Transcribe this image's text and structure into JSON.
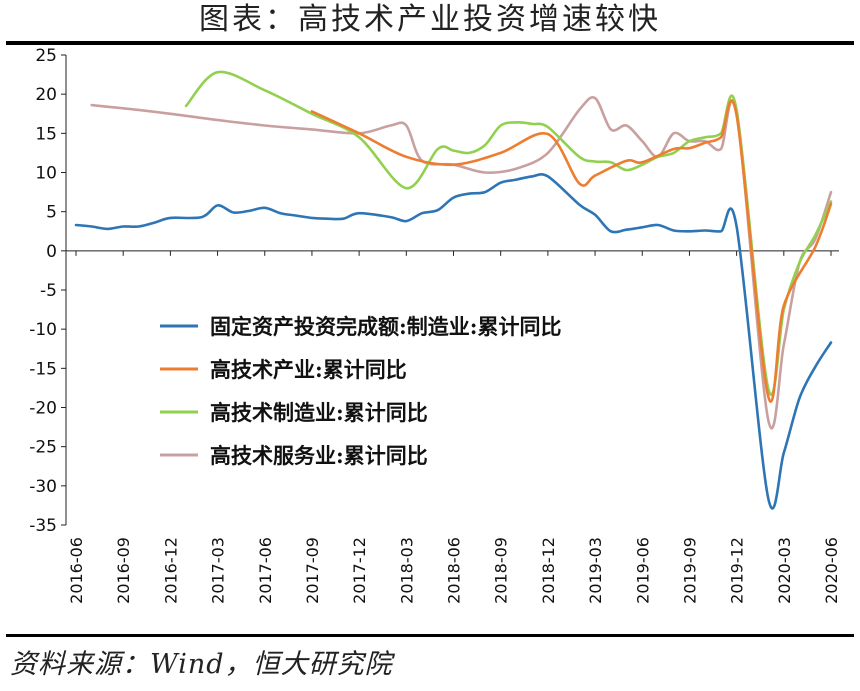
{
  "title": "图表：高技术产业投资增速较快",
  "source": "资料来源：Wind，恒大研究院",
  "chart_data": {
    "type": "line",
    "xlabel": "",
    "ylabel": "",
    "ylim": [
      -35,
      25
    ],
    "yticks": [
      25,
      20,
      15,
      10,
      5,
      0,
      -5,
      -10,
      -15,
      -20,
      -25,
      -30,
      -35
    ],
    "x_tick_labels": [
      "2016-06",
      "2016-09",
      "2016-12",
      "2017-03",
      "2017-06",
      "2017-09",
      "2017-12",
      "2018-03",
      "2018-06",
      "2018-09",
      "2018-12",
      "2019-03",
      "2019-06",
      "2019-09",
      "2019-12",
      "2020-03",
      "2020-06"
    ],
    "legend_position": "center-left",
    "grid": false,
    "series": [
      {
        "name": "固定资产投资完成额:制造业:累计同比",
        "color": "#2E75B6",
        "points": [
          [
            "2016-06",
            3.3
          ],
          [
            "2016-07",
            3.1
          ],
          [
            "2016-08",
            2.8
          ],
          [
            "2016-09",
            3.1
          ],
          [
            "2016-10",
            3.1
          ],
          [
            "2016-11",
            3.6
          ],
          [
            "2016-12",
            4.2
          ],
          [
            "2017-02",
            4.3
          ],
          [
            "2017-03",
            5.8
          ],
          [
            "2017-04",
            4.9
          ],
          [
            "2017-05",
            5.1
          ],
          [
            "2017-06",
            5.5
          ],
          [
            "2017-07",
            4.8
          ],
          [
            "2017-08",
            4.5
          ],
          [
            "2017-09",
            4.2
          ],
          [
            "2017-10",
            4.1
          ],
          [
            "2017-11",
            4.1
          ],
          [
            "2017-12",
            4.8
          ],
          [
            "2018-02",
            4.3
          ],
          [
            "2018-03",
            3.8
          ],
          [
            "2018-04",
            4.8
          ],
          [
            "2018-05",
            5.2
          ],
          [
            "2018-06",
            6.8
          ],
          [
            "2018-07",
            7.3
          ],
          [
            "2018-08",
            7.5
          ],
          [
            "2018-09",
            8.7
          ],
          [
            "2018-10",
            9.1
          ],
          [
            "2018-11",
            9.5
          ],
          [
            "2018-12",
            9.5
          ],
          [
            "2019-02",
            5.9
          ],
          [
            "2019-03",
            4.6
          ],
          [
            "2019-04",
            2.5
          ],
          [
            "2019-05",
            2.7
          ],
          [
            "2019-06",
            3.0
          ],
          [
            "2019-07",
            3.3
          ],
          [
            "2019-08",
            2.6
          ],
          [
            "2019-09",
            2.5
          ],
          [
            "2019-10",
            2.6
          ],
          [
            "2019-11",
            2.5
          ],
          [
            "2019-12",
            3.1
          ],
          [
            "2020-02",
            -31.5
          ],
          [
            "2020-03",
            -25.8
          ],
          [
            "2020-04",
            -18.8
          ],
          [
            "2020-05",
            -14.8
          ],
          [
            "2020-06",
            -11.7
          ]
        ]
      },
      {
        "name": "高技术产业:累计同比",
        "color": "#ED7D31",
        "points": [
          [
            "2017-09",
            17.8
          ],
          [
            "2017-12",
            15.0
          ],
          [
            "2018-03",
            12.0
          ],
          [
            "2018-06",
            11.0
          ],
          [
            "2018-09",
            12.5
          ],
          [
            "2018-12",
            14.9
          ],
          [
            "2019-02",
            8.6
          ],
          [
            "2019-03",
            9.6
          ],
          [
            "2019-05",
            11.5
          ],
          [
            "2019-06",
            11.3
          ],
          [
            "2019-08",
            13.0
          ],
          [
            "2019-09",
            13.1
          ],
          [
            "2019-10",
            13.8
          ],
          [
            "2019-11",
            14.5
          ],
          [
            "2019-12",
            17.3
          ],
          [
            "2020-02",
            -18.5
          ],
          [
            "2020-03",
            -7.0
          ],
          [
            "2020-05",
            0.5
          ],
          [
            "2020-06",
            6.0
          ]
        ]
      },
      {
        "name": "高技术制造业:累计同比",
        "color": "#92D050",
        "points": [
          [
            "2017-01",
            18.5
          ],
          [
            "2017-03",
            22.8
          ],
          [
            "2017-06",
            20.5
          ],
          [
            "2017-09",
            17.5
          ],
          [
            "2017-12",
            14.5
          ],
          [
            "2018-03",
            8.0
          ],
          [
            "2018-05",
            13.0
          ],
          [
            "2018-06",
            12.8
          ],
          [
            "2018-07",
            12.5
          ],
          [
            "2018-08",
            13.5
          ],
          [
            "2018-09",
            16.0
          ],
          [
            "2018-10",
            16.4
          ],
          [
            "2018-11",
            16.2
          ],
          [
            "2018-12",
            15.8
          ],
          [
            "2019-02",
            12.0
          ],
          [
            "2019-03",
            11.4
          ],
          [
            "2019-04",
            11.3
          ],
          [
            "2019-05",
            10.3
          ],
          [
            "2019-06",
            11.0
          ],
          [
            "2019-07",
            12.0
          ],
          [
            "2019-08",
            12.5
          ],
          [
            "2019-09",
            14.0
          ],
          [
            "2019-10",
            14.5
          ],
          [
            "2019-11",
            15.0
          ],
          [
            "2019-12",
            18.0
          ],
          [
            "2020-02",
            -17.5
          ],
          [
            "2020-03",
            -7.5
          ],
          [
            "2020-04",
            -1.5
          ],
          [
            "2020-05",
            2.0
          ],
          [
            "2020-06",
            6.3
          ]
        ]
      },
      {
        "name": "高技术服务业:累计同比",
        "color": "#C9A0A0",
        "points": [
          [
            "2016-07",
            18.6
          ],
          [
            "2016-09",
            18.2
          ],
          [
            "2016-12",
            17.5
          ],
          [
            "2017-03",
            16.7
          ],
          [
            "2017-06",
            16.0
          ],
          [
            "2017-09",
            15.5
          ],
          [
            "2017-12",
            15.0
          ],
          [
            "2018-02",
            16.0
          ],
          [
            "2018-03",
            16.0
          ],
          [
            "2018-04",
            11.5
          ],
          [
            "2018-06",
            11.0
          ],
          [
            "2018-08",
            10.0
          ],
          [
            "2018-10",
            10.5
          ],
          [
            "2018-12",
            12.5
          ],
          [
            "2019-02",
            18.0
          ],
          [
            "2019-03",
            19.5
          ],
          [
            "2019-04",
            15.5
          ],
          [
            "2019-05",
            16.0
          ],
          [
            "2019-06",
            14.0
          ],
          [
            "2019-07",
            12.0
          ],
          [
            "2019-08",
            15.0
          ],
          [
            "2019-09",
            14.0
          ],
          [
            "2019-10",
            14.0
          ],
          [
            "2019-11",
            13.0
          ],
          [
            "2019-12",
            17.5
          ],
          [
            "2020-02",
            -21.5
          ],
          [
            "2020-03",
            -12.0
          ],
          [
            "2020-04",
            -1.5
          ],
          [
            "2020-05",
            1.5
          ],
          [
            "2020-06",
            7.5
          ]
        ]
      }
    ]
  }
}
